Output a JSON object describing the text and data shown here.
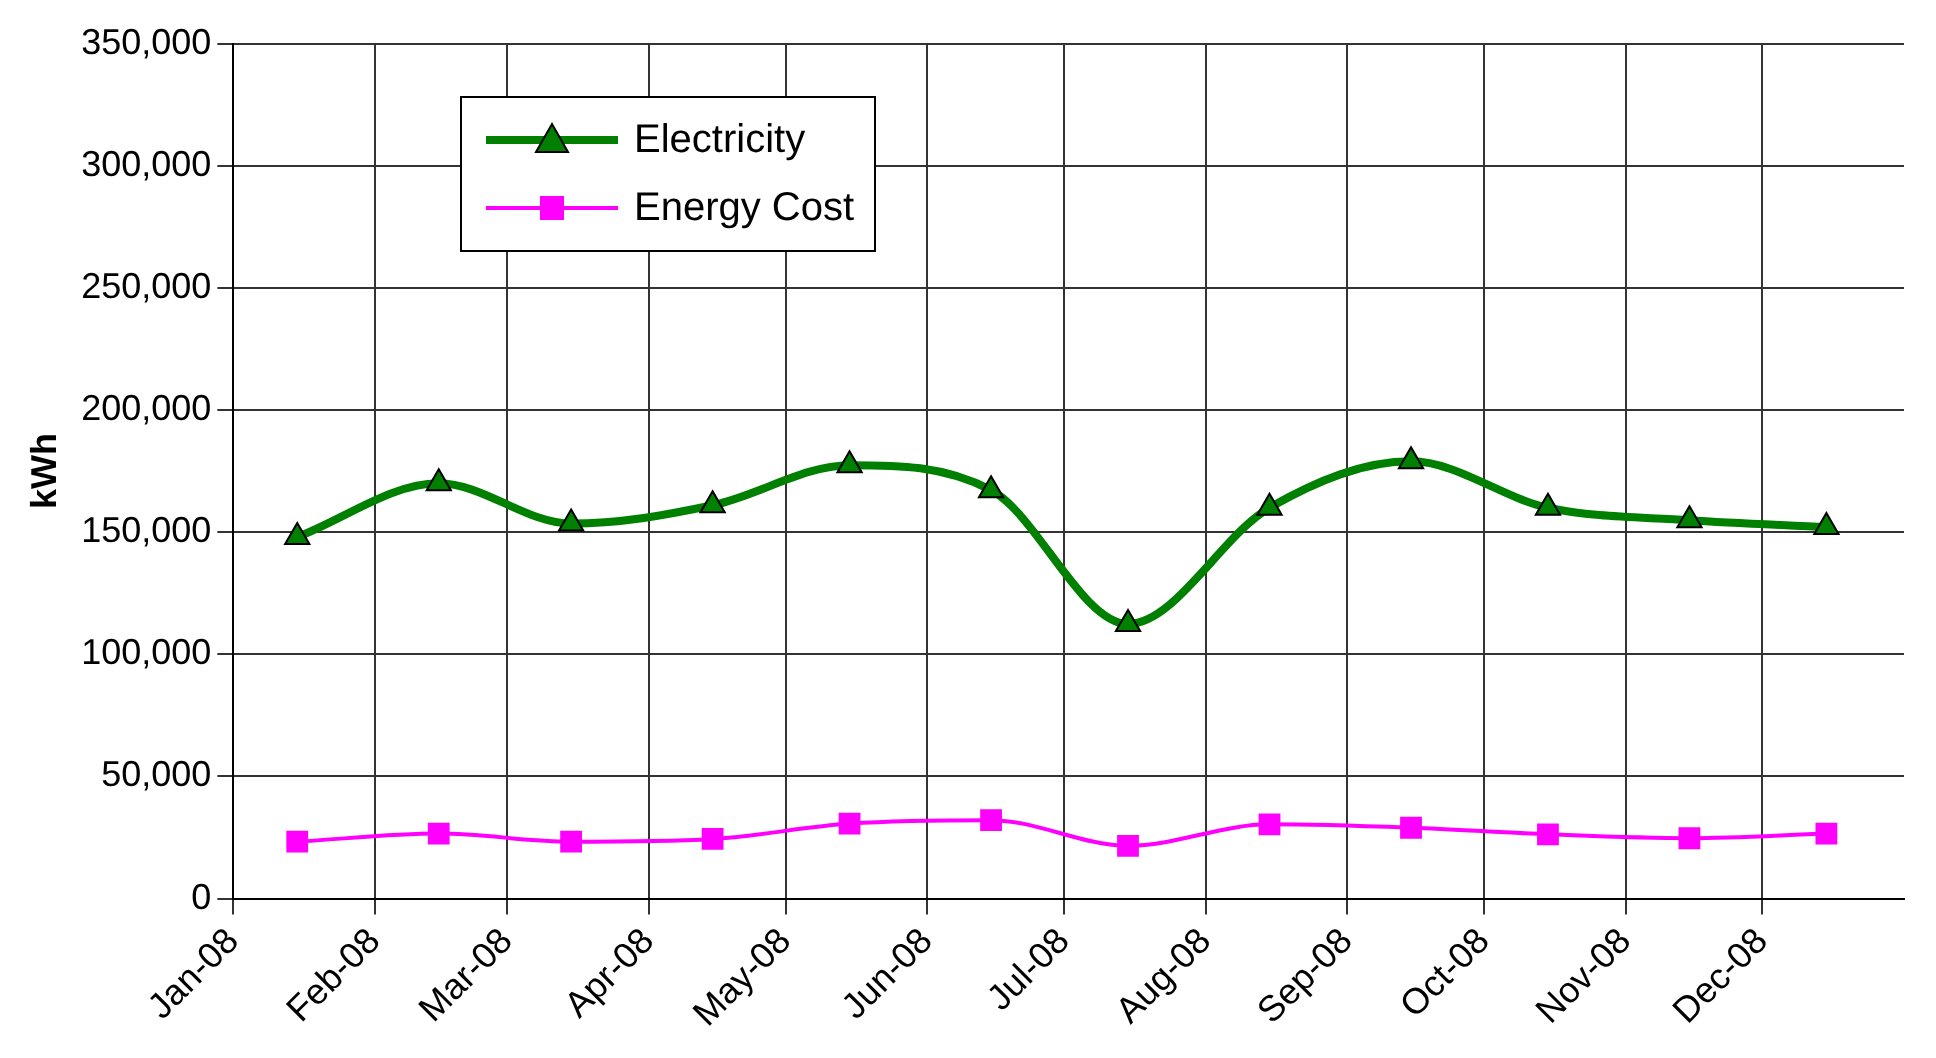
{
  "chart_data": {
    "type": "line",
    "ylabel": "kWh",
    "x": [
      "2008-01-15",
      "2008-02-15",
      "2008-03-15",
      "2008-04-15",
      "2008-05-15",
      "2008-06-15",
      "2008-07-15",
      "2008-08-15",
      "2008-09-15",
      "2008-10-15",
      "2008-11-15",
      "2008-12-15"
    ],
    "series": [
      {
        "name": "Electricity",
        "color": "#008000",
        "marker": "triangle",
        "values": [
          148000,
          170000,
          153500,
          161000,
          177400,
          167200,
          112400,
          160000,
          179000,
          160000,
          154900,
          152100
        ]
      },
      {
        "name": "Energy Cost",
        "color": "#ff00ff",
        "marker": "square",
        "values": [
          23300,
          26600,
          23300,
          24400,
          30700,
          32100,
          21600,
          30400,
          29000,
          26300,
          24700,
          26600
        ]
      }
    ],
    "xlim": [
      "2008-01-01",
      "2009-01-01"
    ],
    "xticks": [
      {
        "value": "2008-01-01",
        "label": "Jan-08"
      },
      {
        "value": "2008-02-01",
        "label": "Feb-08"
      },
      {
        "value": "2008-03-01",
        "label": "Mar-08"
      },
      {
        "value": "2008-04-01",
        "label": "Apr-08"
      },
      {
        "value": "2008-05-01",
        "label": "May-08"
      },
      {
        "value": "2008-06-01",
        "label": "Jun-08"
      },
      {
        "value": "2008-07-01",
        "label": "Jul-08"
      },
      {
        "value": "2008-08-01",
        "label": "Aug-08"
      },
      {
        "value": "2008-09-01",
        "label": "Sep-08"
      },
      {
        "value": "2008-10-01",
        "label": "Oct-08"
      },
      {
        "value": "2008-11-01",
        "label": "Nov-08"
      },
      {
        "value": "2008-12-01",
        "label": "Dec-08"
      }
    ],
    "ylim": [
      0,
      350000
    ],
    "yticks": [
      {
        "value": 0,
        "label": "0"
      },
      {
        "value": 50000,
        "label": "50,000"
      },
      {
        "value": 100000,
        "label": "100,000"
      },
      {
        "value": 150000,
        "label": "150,000"
      },
      {
        "value": 200000,
        "label": "200,000"
      },
      {
        "value": 250000,
        "label": "250,000"
      },
      {
        "value": 300000,
        "label": "300,000"
      },
      {
        "value": 350000,
        "label": "350,000"
      }
    ],
    "grid": true,
    "legend": "top left"
  }
}
